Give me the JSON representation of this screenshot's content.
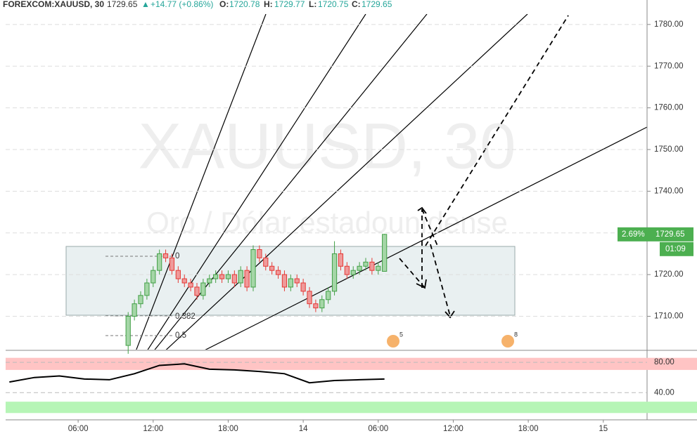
{
  "chart_data": {
    "type": "candlestick",
    "title": "FOREXCOM:XAUUSD, 30",
    "header": {
      "last": "1729.65",
      "arrow": "▲",
      "change": "+14.77 (+0.86%)",
      "o_label": "O:",
      "o": "1720.78",
      "h_label": "H:",
      "h": "1729.77",
      "l_label": "L:",
      "l": "1720.75",
      "c_label": "C:",
      "c": "1729.65"
    },
    "watermark": [
      "XAUUSD, 30",
      "Oro / Dólar estadounidense"
    ],
    "annotations": [
      "0",
      "0.382",
      "0.5"
    ],
    "events": [
      "5",
      "8"
    ],
    "price_label": "1729.65",
    "change_label": "2.69%",
    "countdown": "01:09",
    "x": [
      10,
      10.5,
      11,
      11.5,
      12,
      12.5,
      13,
      13.5,
      14,
      14.5,
      15,
      15.5,
      16,
      16.5,
      17,
      17.5,
      18,
      18.5,
      19,
      19.5,
      20,
      20.5,
      21,
      21.5,
      22,
      22.5,
      23,
      23.5,
      24,
      24.5,
      25,
      25.5,
      26,
      26.5,
      27,
      27.5,
      28,
      28.5,
      29,
      29.5,
      30,
      30.5
    ],
    "open": [
      1703,
      1710,
      1713,
      1715,
      1718,
      1721,
      1725,
      1724,
      1721,
      1719,
      1718,
      1717,
      1715,
      1718,
      1719,
      1720,
      1719,
      1720,
      1718,
      1721,
      1717,
      1726,
      1724,
      1722,
      1721,
      1720,
      1717,
      1719,
      1718,
      1716,
      1713,
      1712,
      1714,
      1716,
      1725,
      1722,
      1720,
      1721,
      1722,
      1723,
      1721,
      1720.78
    ],
    "high": [
      1711,
      1714,
      1716,
      1719,
      1722,
      1726,
      1726,
      1725,
      1722,
      1720,
      1719,
      1718,
      1719,
      1720,
      1721,
      1721,
      1721,
      1721,
      1722,
      1722,
      1727,
      1727,
      1725,
      1723,
      1722,
      1721,
      1720,
      1720,
      1719,
      1717,
      1714,
      1715,
      1717,
      1728,
      1726,
      1723,
      1722,
      1723,
      1724,
      1724,
      1723,
      1729.77
    ],
    "low": [
      1701,
      1709,
      1712,
      1714,
      1717,
      1720,
      1723,
      1720,
      1718,
      1717,
      1716,
      1714,
      1714,
      1717,
      1718,
      1718,
      1718,
      1717,
      1717,
      1716,
      1716,
      1723,
      1721,
      1720,
      1719,
      1716,
      1716,
      1717,
      1715,
      1712,
      1711,
      1711,
      1713,
      1715,
      1721,
      1719,
      1719,
      1720,
      1721,
      1720,
      1720,
      1720.75
    ],
    "close": [
      1710,
      1713,
      1715,
      1718,
      1721,
      1725,
      1724,
      1721,
      1719,
      1718,
      1717,
      1715,
      1718,
      1719,
      1720,
      1719,
      1720,
      1718,
      1721,
      1717,
      1726,
      1724,
      1722,
      1721,
      1720,
      1717,
      1719,
      1718,
      1716,
      1713,
      1712,
      1714,
      1716,
      1725,
      1722,
      1720,
      1721,
      1722,
      1723,
      1721,
      1722,
      1729.65
    ],
    "up_color": "#a5d6a7",
    "down_color": "#ef9a9a",
    "xlim": [
      0.2,
      51.5
    ],
    "xticks": [
      {
        "value": 6,
        "label": "06:00"
      },
      {
        "value": 12,
        "label": "12:00"
      },
      {
        "value": 18,
        "label": "18:00"
      },
      {
        "value": 24,
        "label": "14"
      },
      {
        "value": 30,
        "label": "06:00"
      },
      {
        "value": 36,
        "label": "12:00"
      },
      {
        "value": 42,
        "label": "18:00"
      },
      {
        "value": 48,
        "label": "15"
      }
    ],
    "ylim": [
      1702,
      1782.5
    ],
    "yticks": [
      {
        "value": 1710,
        "label": "1710.00"
      },
      {
        "value": 1720,
        "label": "1720.00"
      },
      {
        "value": 1730,
        "label": "1730.00"
      },
      {
        "value": 1740,
        "label": "1740.00"
      },
      {
        "value": 1750,
        "label": "1750.00"
      },
      {
        "value": 1760,
        "label": "1760.00"
      },
      {
        "value": 1770,
        "label": "1770.00"
      },
      {
        "value": 1780,
        "label": "1780.00"
      }
    ],
    "grid": true,
    "indicator": {
      "type": "line",
      "color": "#000000",
      "x": [
        0.5,
        2.5,
        4.5,
        6.5,
        8.5,
        10.5,
        12.5,
        14.5,
        16.5,
        18.5,
        20.5,
        22.5,
        24.5,
        26.5,
        28.5,
        30.5
      ],
      "values": [
        54,
        60,
        62,
        58,
        57,
        65,
        76,
        78,
        71,
        70,
        68,
        65,
        53,
        56,
        57,
        58
      ],
      "ylim": [
        4,
        95
      ],
      "yticks": [
        {
          "value": 40,
          "label": "40.00"
        },
        {
          "value": 80,
          "label": "80.00"
        }
      ],
      "bands": [
        {
          "range": [
            70,
            86
          ],
          "color": "#ffc4c4"
        },
        {
          "range": [
            13,
            28
          ],
          "color": "#b6f5b6"
        }
      ]
    }
  }
}
